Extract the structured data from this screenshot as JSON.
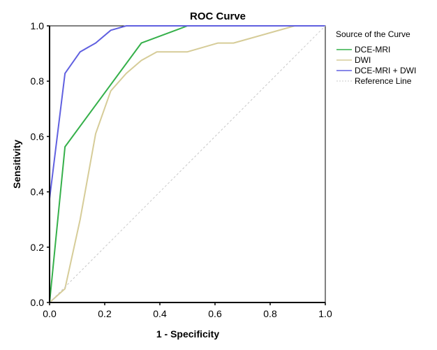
{
  "chart_data": {
    "type": "line",
    "title": "ROC Curve",
    "xlabel": "1 - Specificity",
    "ylabel": "Sensitivity",
    "xlim": [
      0,
      1
    ],
    "ylim": [
      0,
      1
    ],
    "xticks": [
      "0.0",
      "0.2",
      "0.4",
      "0.6",
      "0.8",
      "1.0"
    ],
    "yticks": [
      "0.0",
      "0.2",
      "0.4",
      "0.6",
      "0.8",
      "1.0"
    ],
    "grid": false,
    "legend_title": "Source of the Curve",
    "legend_position": "right",
    "series": [
      {
        "name": "DCE-MRI",
        "color": "#35b04a",
        "dash": false,
        "points": [
          [
            0,
            0
          ],
          [
            0.056,
            0.563
          ],
          [
            0.333,
            0.938
          ],
          [
            0.5,
            1.0
          ],
          [
            1.0,
            1.0
          ]
        ]
      },
      {
        "name": "DWI",
        "color": "#d6cc98",
        "dash": false,
        "points": [
          [
            0,
            0
          ],
          [
            0.056,
            0.05
          ],
          [
            0.111,
            0.3
          ],
          [
            0.167,
            0.61
          ],
          [
            0.222,
            0.765
          ],
          [
            0.278,
            0.828
          ],
          [
            0.333,
            0.875
          ],
          [
            0.389,
            0.906
          ],
          [
            0.5,
            0.906
          ],
          [
            0.611,
            0.938
          ],
          [
            0.667,
            0.938
          ],
          [
            0.889,
            1.0
          ],
          [
            1.0,
            1.0
          ]
        ]
      },
      {
        "name": "DCE-MRI + DWI",
        "color": "#6060e0",
        "dash": false,
        "points": [
          [
            0,
            0.375
          ],
          [
            0.056,
            0.828
          ],
          [
            0.111,
            0.906
          ],
          [
            0.167,
            0.938
          ],
          [
            0.222,
            0.984
          ],
          [
            0.278,
            1.0
          ],
          [
            1.0,
            1.0
          ]
        ]
      },
      {
        "name": "Reference Line",
        "color": "#c8c8c8",
        "dash": true,
        "points": [
          [
            0,
            0
          ],
          [
            1,
            1
          ]
        ]
      }
    ]
  }
}
